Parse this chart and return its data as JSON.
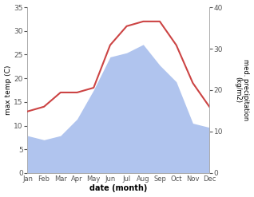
{
  "months": [
    "Jan",
    "Feb",
    "Mar",
    "Apr",
    "May",
    "Jun",
    "Jul",
    "Aug",
    "Sep",
    "Oct",
    "Nov",
    "Dec"
  ],
  "temperature": [
    13,
    14,
    17,
    17,
    18,
    27,
    31,
    32,
    32,
    27,
    19,
    14
  ],
  "precipitation": [
    9,
    8,
    9,
    13,
    20,
    28,
    29,
    31,
    26,
    22,
    12,
    11
  ],
  "temp_color": "#cc4444",
  "precip_color": "#b0c4ee",
  "ylabel_left": "max temp (C)",
  "ylabel_right": "med. precipitation\n(kg/m2)",
  "xlabel": "date (month)",
  "ylim_left": [
    0,
    35
  ],
  "ylim_right": [
    0,
    40
  ],
  "yticks_left": [
    0,
    5,
    10,
    15,
    20,
    25,
    30,
    35
  ],
  "yticks_right": [
    0,
    10,
    20,
    30,
    40
  ],
  "temp_linewidth": 1.5,
  "figwidth": 3.18,
  "figheight": 2.47,
  "dpi": 100
}
